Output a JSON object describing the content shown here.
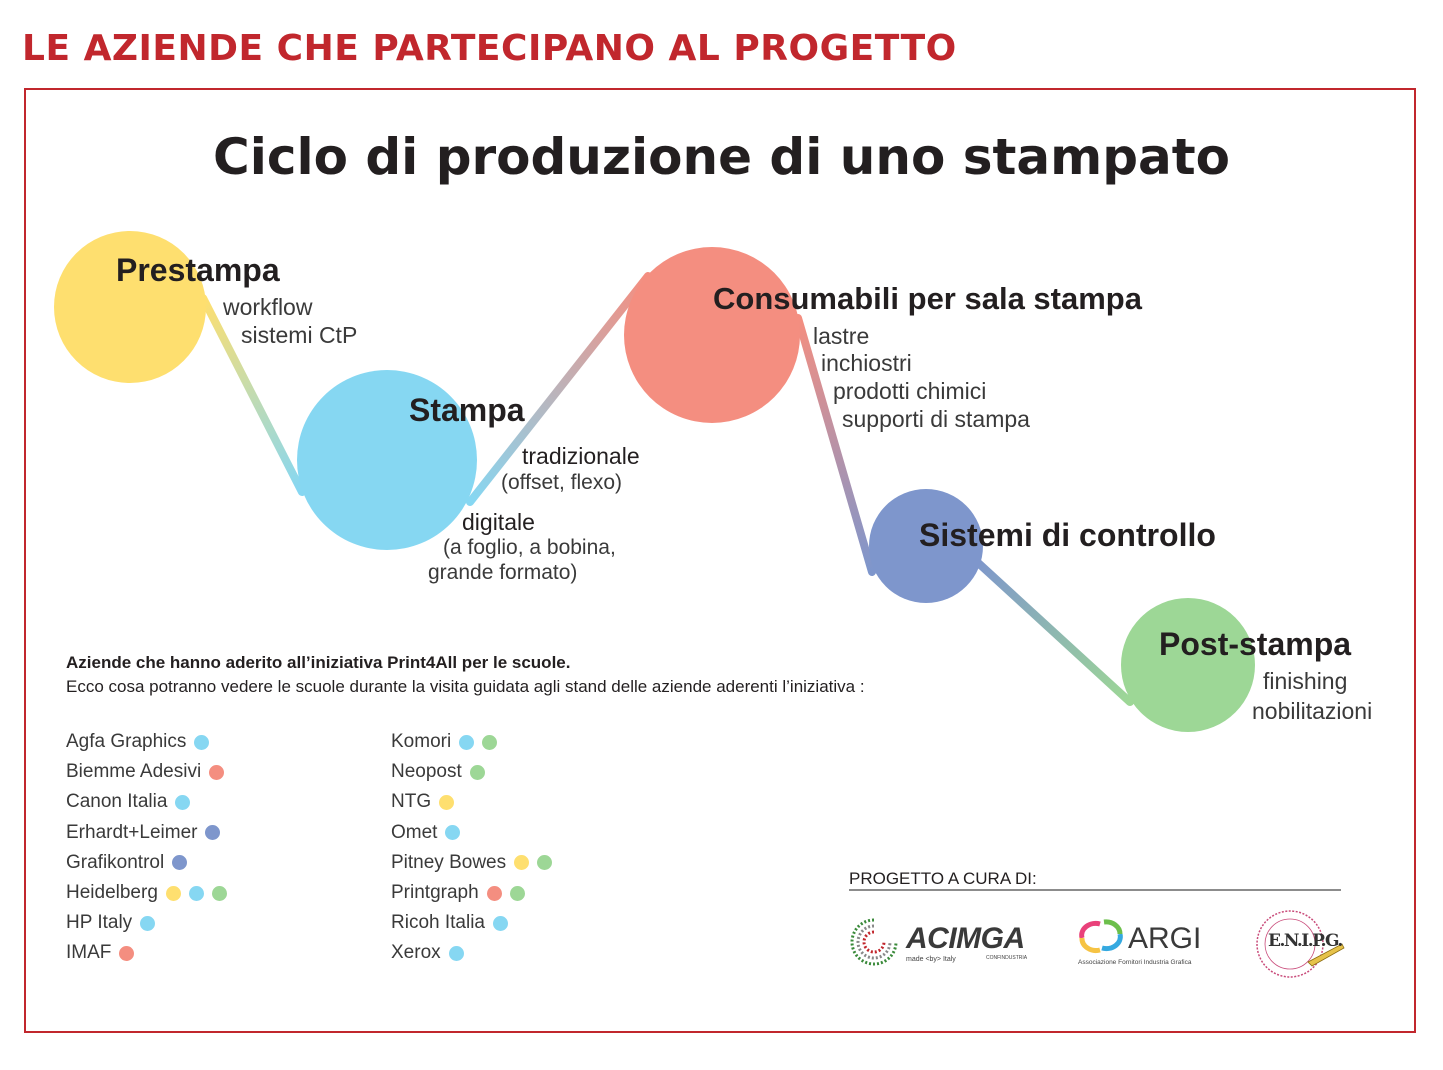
{
  "header": {
    "title": "LE AZIENDE CHE PARTECIPANO AL PROGETTO"
  },
  "diagram": {
    "title": "Ciclo di produzione di uno stampato",
    "stages": [
      {
        "id": "prestampa",
        "title": "Prestampa",
        "color": "#fedf6f",
        "items": [
          "workflow",
          "sistemi CtP"
        ]
      },
      {
        "id": "stampa",
        "title": "Stampa",
        "color": "#86d7f2",
        "items": [
          "tradizionale",
          "(offset, flexo)",
          "digitale",
          "(a foglio, a bobina,",
          "grande formato)"
        ]
      },
      {
        "id": "consumabili",
        "title": "Consumabili per sala stampa",
        "color": "#f48e80",
        "items": [
          "lastre",
          "inchiostri",
          "prodotti chimici",
          "supporti di stampa"
        ]
      },
      {
        "id": "controllo",
        "title": "Sistemi di controllo",
        "color": "#7e96cc",
        "items": []
      },
      {
        "id": "poststampa",
        "title": "Post-stampa",
        "color": "#9dd796",
        "items": [
          "finishing",
          "nobilitazioni"
        ]
      }
    ]
  },
  "intro": {
    "bold": "Aziende che hanno aderito all’iniziativa Print4All per le scuole.",
    "text": "Ecco cosa potranno vedere le scuole durante la visita guidata agli stand delle aziende aderenti l’iniziativa :"
  },
  "companies": {
    "left": [
      {
        "name": "Agfa Graphics",
        "dots": [
          "stampa"
        ]
      },
      {
        "name": "Biemme Adesivi",
        "dots": [
          "consumabili"
        ]
      },
      {
        "name": "Canon Italia",
        "dots": [
          "stampa"
        ]
      },
      {
        "name": "Erhardt+Leimer",
        "dots": [
          "controllo"
        ]
      },
      {
        "name": "Grafikontrol",
        "dots": [
          "controllo"
        ]
      },
      {
        "name": "Heidelberg",
        "dots": [
          "prestampa",
          "stampa",
          "poststampa"
        ]
      },
      {
        "name": "HP Italy",
        "dots": [
          "stampa"
        ]
      },
      {
        "name": "IMAF",
        "dots": [
          "consumabili"
        ]
      }
    ],
    "right": [
      {
        "name": "Komori",
        "dots": [
          "stampa",
          "poststampa"
        ]
      },
      {
        "name": "Neopost",
        "dots": [
          "poststampa"
        ]
      },
      {
        "name": "NTG",
        "dots": [
          "prestampa"
        ]
      },
      {
        "name": "Omet",
        "dots": [
          "stampa"
        ]
      },
      {
        "name": "Pitney Bowes",
        "dots": [
          "prestampa",
          "poststampa"
        ]
      },
      {
        "name": "Printgraph",
        "dots": [
          "consumabili",
          "poststampa"
        ]
      },
      {
        "name": "Ricoh Italia",
        "dots": [
          "stampa"
        ]
      },
      {
        "name": "Xerox",
        "dots": [
          "stampa"
        ]
      }
    ]
  },
  "project": {
    "label": "PROGETTO A CURA DI:",
    "logos": {
      "acimga": {
        "name": "ACIMGA",
        "tagline": "made <by> Italy",
        "sub": "CONFINDUSTRIA"
      },
      "argi": {
        "name": "ARGI",
        "tagline": "Associazione Fornitori Industria Grafica"
      },
      "enipg": {
        "name": "E.N.I.P.G.",
        "ring": "Ente Nazionale per l'Istruzione Professionale Grafica"
      }
    }
  },
  "colors": {
    "accent": "#c1272d",
    "text": "#231f20"
  }
}
